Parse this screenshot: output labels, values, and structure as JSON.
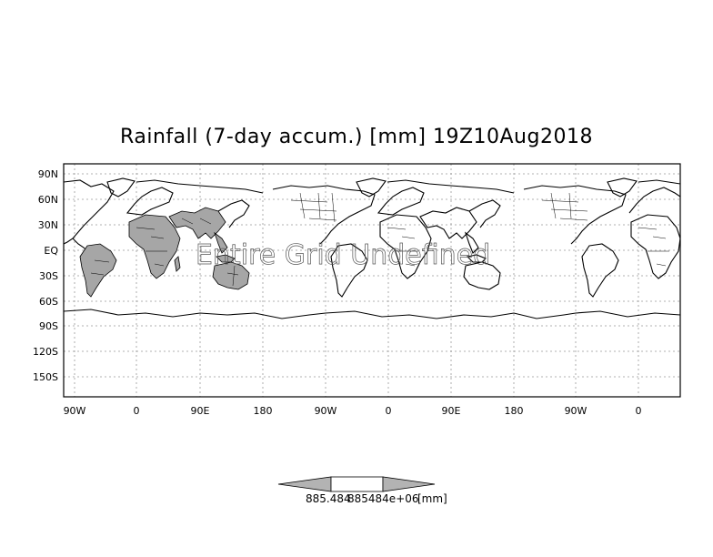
{
  "title": "Rainfall (7-day accum.) [mm] 19Z10Aug2018",
  "watermark": "Entire Grid Undefined",
  "lat_labels": [
    "90N",
    "60N",
    "30N",
    "EQ",
    "30S",
    "60S",
    "90S",
    "120S",
    "150S"
  ],
  "lon_labels": [
    "90W",
    "0",
    "90E",
    "180",
    "90W",
    "0",
    "90E",
    "180",
    "90W",
    "0"
  ],
  "colorbar": {
    "label_left": "885.484",
    "label_right": "885484e+06",
    "unit": "[mm]",
    "colors": [
      "#b3b3b3",
      "#ffffff",
      "#b3b3b3"
    ]
  },
  "colors": {
    "shaded_land": "#a6a6a6",
    "grid": "#999999"
  }
}
